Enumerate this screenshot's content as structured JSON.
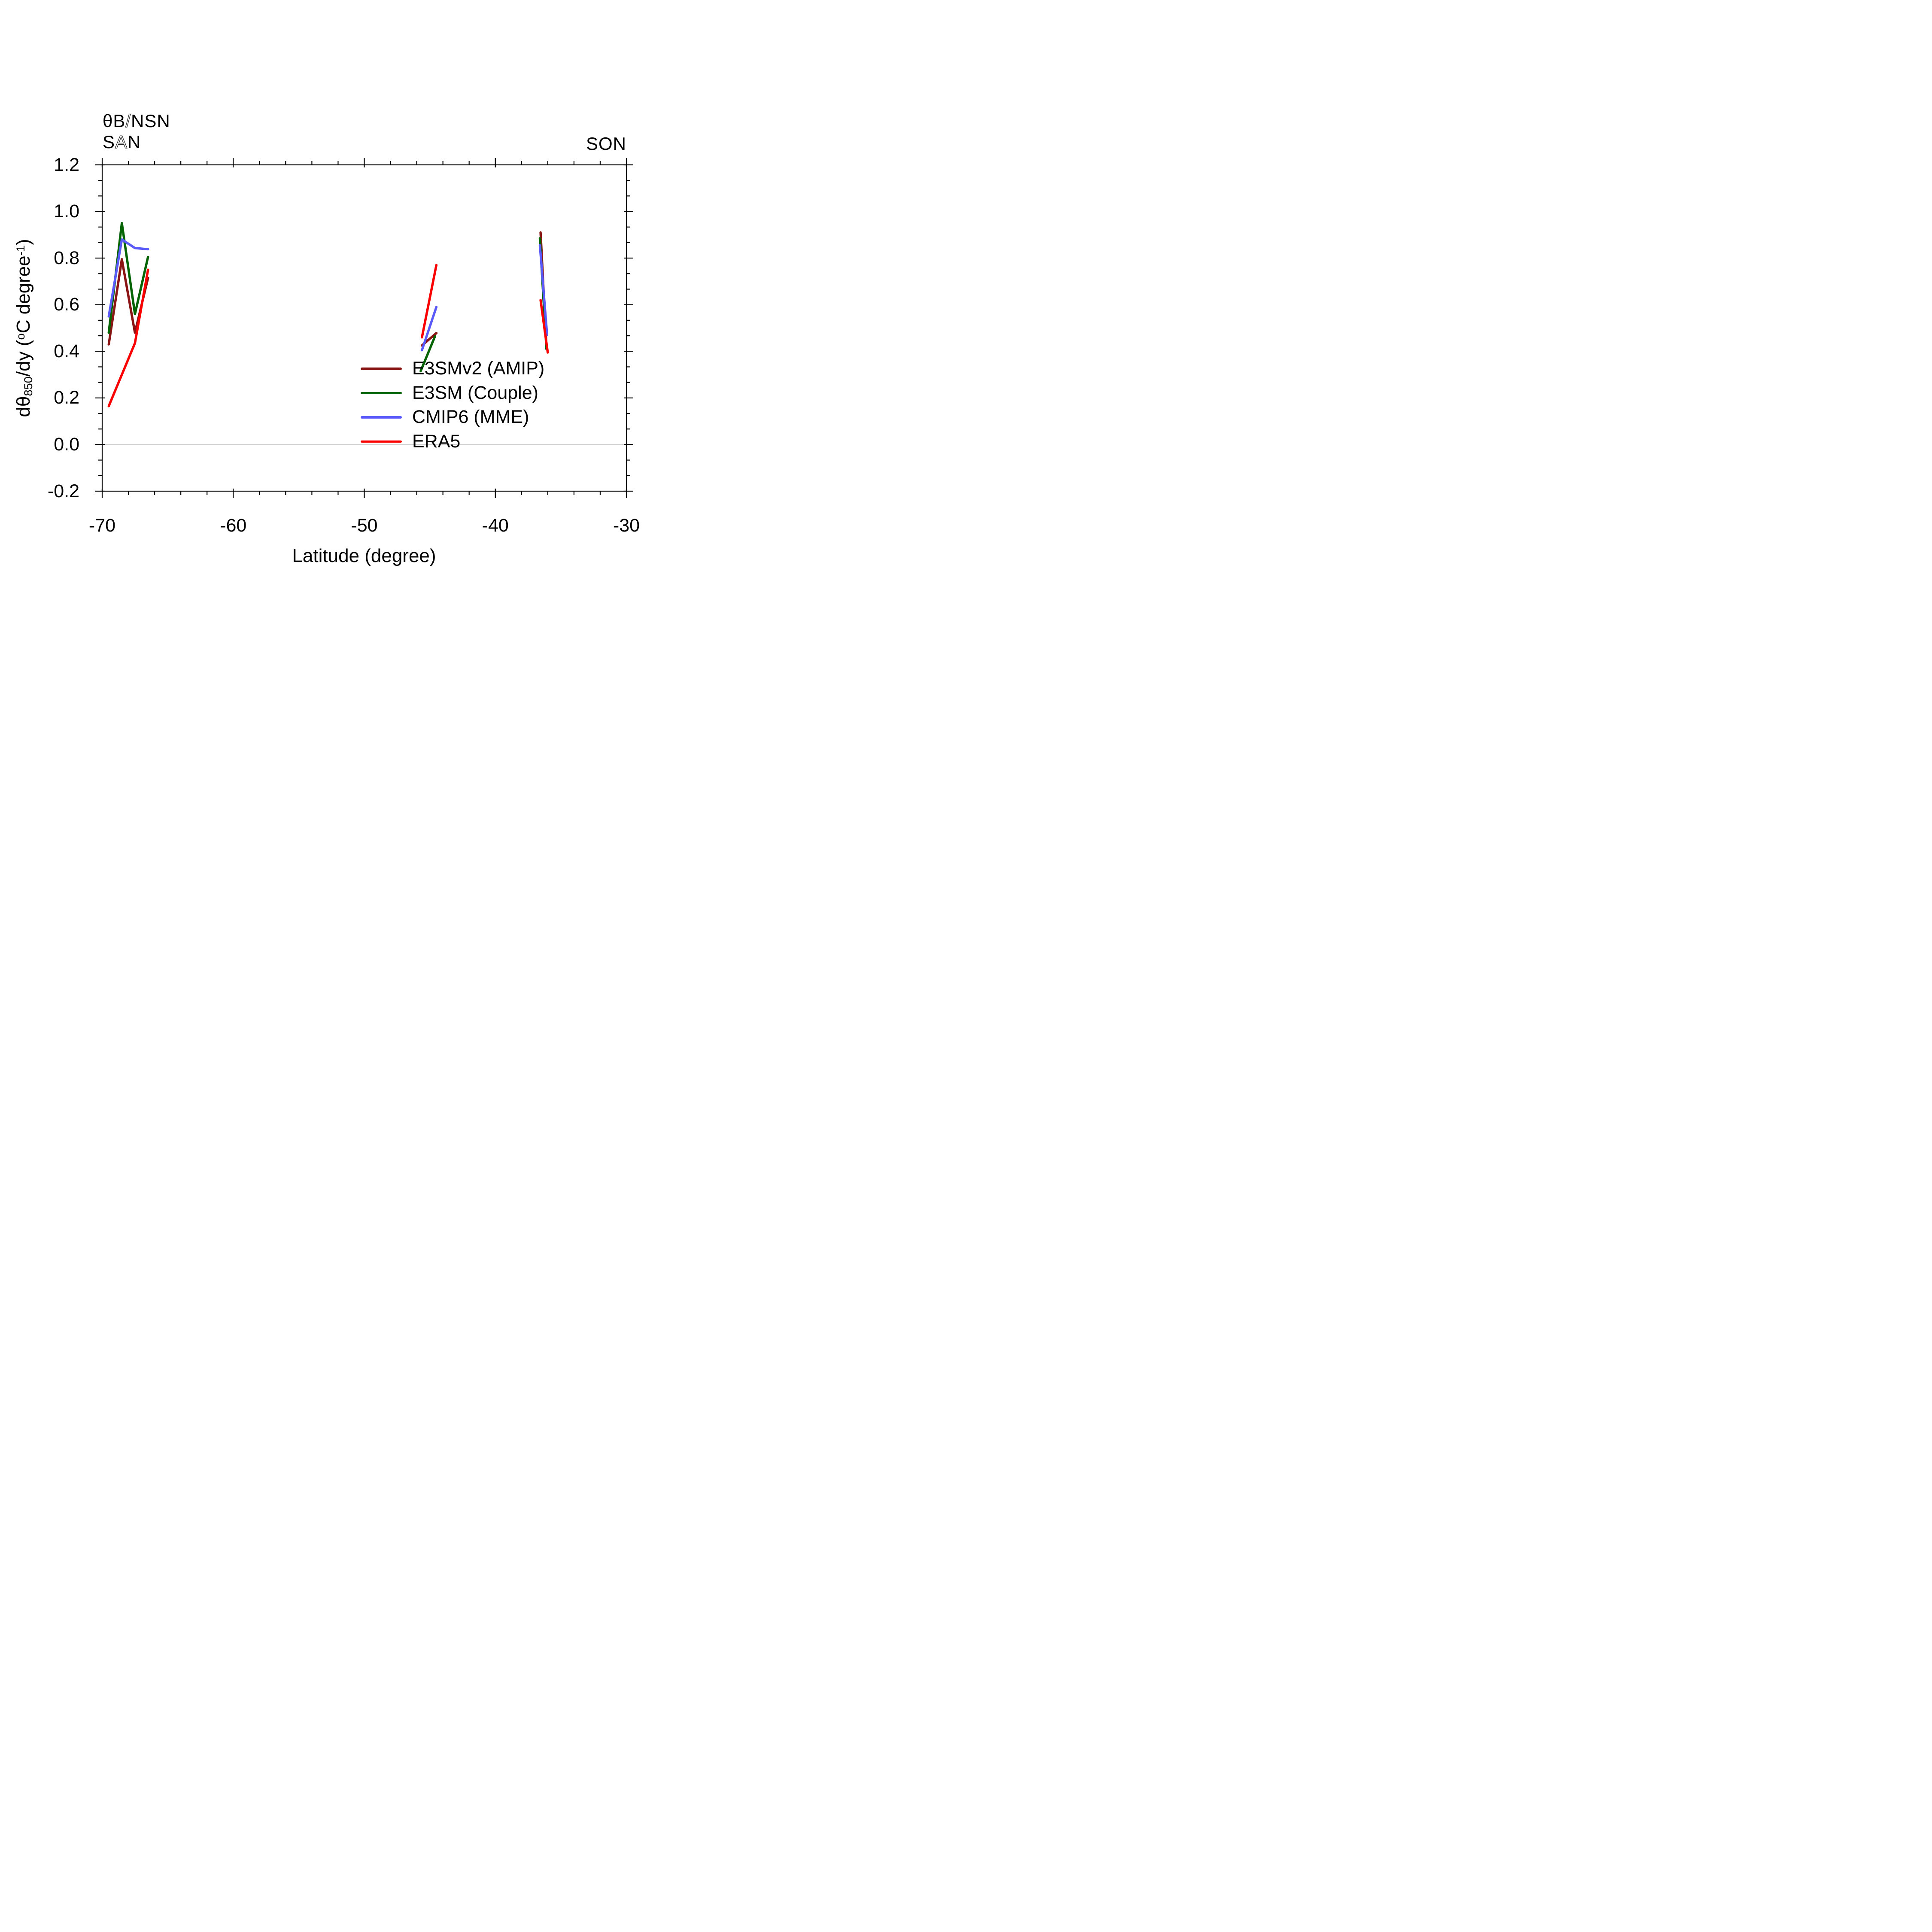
{
  "titles": {
    "top_left_line1_pre": "θB",
    "top_left_line1_slash": "/",
    "top_left_line1_post": "NSN",
    "top_left_line2_pre": "S",
    "top_left_line2_thin": "A",
    "top_left_line2_post": "N",
    "top_right": "SON"
  },
  "axis_titles": {
    "x": "Latitude (degree)",
    "y_pre": "dθ",
    "y_sub": "850",
    "y_mid": "/dy (",
    "y_sup_deg": "o",
    "y_unit": "C degree",
    "y_sup_exp": "-1",
    "y_post": ")"
  },
  "chart_data": {
    "type": "line",
    "title_left": "θB/NSN SAN",
    "title_right": "SON",
    "xlabel": "Latitude (degree)",
    "ylabel": "dθ850/dy (°C degree⁻¹)",
    "xlim": [
      -70,
      -30
    ],
    "ylim": [
      -0.2,
      1.2
    ],
    "x_ticks": [
      [
        -70,
        "-70"
      ],
      [
        -60,
        "-60"
      ],
      [
        -50,
        "-50"
      ],
      [
        -40,
        "-40"
      ],
      [
        -30,
        "-30"
      ]
    ],
    "x_minor_step": 2,
    "y_ticks": [
      [
        1.2,
        "1.2"
      ],
      [
        1.0,
        "1.0"
      ],
      [
        0.8,
        "0.8"
      ],
      [
        0.6,
        "0.6"
      ],
      [
        0.4,
        "0.4"
      ],
      [
        0.2,
        "0.2"
      ],
      [
        0.0,
        "0.0"
      ],
      [
        -0.2,
        "-0.2"
      ]
    ],
    "y_minor_per_major": 2,
    "zero_gridline": 0.0,
    "zero_gridline_color": "#cccccc",
    "grid": false,
    "legend_position": "inside, lower middle",
    "series": [
      {
        "name": "E3SMv2 (AMIP)",
        "color": "#8B1414",
        "segments": [
          [
            [
              -69.5,
              0.43
            ],
            [
              -68.5,
              0.795
            ],
            [
              -67.5,
              0.48
            ],
            [
              -66.5,
              0.715
            ]
          ],
          [
            [
              -45.6,
              0.425
            ],
            [
              -44.5,
              0.478
            ]
          ],
          [
            [
              -36.55,
              0.91
            ],
            [
              -36.1,
              0.42
            ]
          ]
        ]
      },
      {
        "name": "E3SM (Couple)",
        "color": "#046404",
        "segments": [
          [
            [
              -69.5,
              0.48
            ],
            [
              -68.5,
              0.95
            ],
            [
              -67.5,
              0.56
            ],
            [
              -66.5,
              0.805
            ]
          ],
          [
            [
              -45.7,
              0.315
            ],
            [
              -44.6,
              0.465
            ]
          ],
          [
            [
              -36.6,
              0.885
            ],
            [
              -36.1,
              0.41
            ]
          ]
        ]
      },
      {
        "name": "CMIP6 (MME)",
        "color": "#5A5AFA",
        "segments": [
          [
            [
              -69.5,
              0.55
            ],
            [
              -68.5,
              0.88
            ],
            [
              -67.5,
              0.843
            ],
            [
              -66.5,
              0.838
            ]
          ],
          [
            [
              -45.6,
              0.405
            ],
            [
              -44.5,
              0.59
            ]
          ],
          [
            [
              -36.6,
              0.855
            ],
            [
              -36.05,
              0.47
            ]
          ]
        ]
      },
      {
        "name": "ERA5",
        "color": "#FB0000",
        "segments": [
          [
            [
              -69.5,
              0.165
            ],
            [
              -67.5,
              0.435
            ],
            [
              -66.5,
              0.75
            ]
          ],
          [
            [
              -45.6,
              0.46
            ],
            [
              -44.5,
              0.77
            ]
          ],
          [
            [
              -36.55,
              0.62
            ],
            [
              -36.0,
              0.395
            ]
          ]
        ]
      }
    ]
  }
}
